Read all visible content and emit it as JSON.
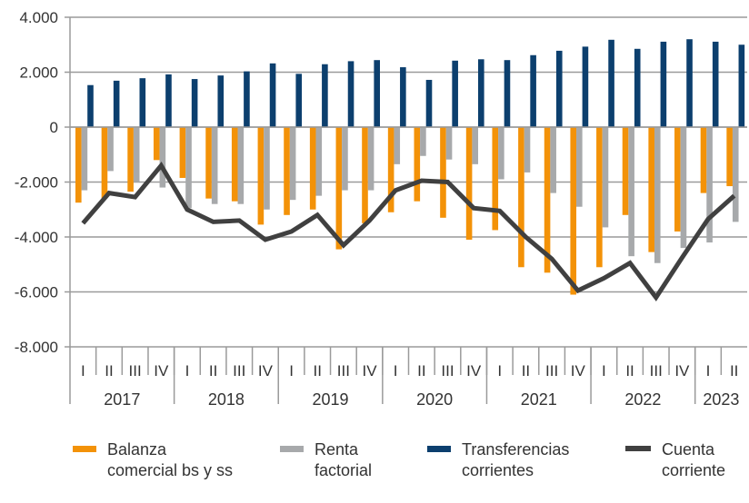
{
  "chart_data": {
    "type": "bar",
    "title": "",
    "xlabel": "",
    "ylabel": "",
    "ylim": [
      -8000,
      4000
    ],
    "yticks": [
      4000,
      2000,
      0,
      -2000,
      -4000,
      -6000,
      -8000
    ],
    "ytick_labels": [
      "4.000",
      "2.000",
      "0",
      "-2.000",
      "-4.000",
      "-6.000",
      "-8.000"
    ],
    "grid": true,
    "legend_placement": "bottom",
    "quarters": [
      "I",
      "II",
      "III",
      "IV",
      "I",
      "II",
      "III",
      "IV",
      "I",
      "II",
      "III",
      "IV",
      "I",
      "II",
      "III",
      "IV",
      "I",
      "II",
      "III",
      "IV",
      "I",
      "II",
      "III",
      "IV",
      "I",
      "II"
    ],
    "years": [
      {
        "label": "2017",
        "quarters": 4
      },
      {
        "label": "2018",
        "quarters": 4
      },
      {
        "label": "2019",
        "quarters": 4
      },
      {
        "label": "2020",
        "quarters": 4
      },
      {
        "label": "2021",
        "quarters": 4
      },
      {
        "label": "2022",
        "quarters": 4
      },
      {
        "label": "2023",
        "quarters": 2
      }
    ],
    "series": [
      {
        "name": "Balanza\ncomercial bs y ss",
        "type": "bar",
        "color": "#F39208",
        "values": [
          -2750,
          -2600,
          -2350,
          -1200,
          -1850,
          -2600,
          -2700,
          -3550,
          -3200,
          -3000,
          -4450,
          -3500,
          -3100,
          -2700,
          -3300,
          -4100,
          -3750,
          -5100,
          -5300,
          -6100,
          -5100,
          -3200,
          -4550,
          -3800,
          -2400,
          -2150
        ]
      },
      {
        "name": "Renta\nfactorial",
        "type": "bar",
        "color": "#A7A9AB",
        "values": [
          -2300,
          -1600,
          -2000,
          -2200,
          -2950,
          -2800,
          -2800,
          -3000,
          -2650,
          -2500,
          -2300,
          -2300,
          -1350,
          -1050,
          -1180,
          -1350,
          -1900,
          -1650,
          -2400,
          -2900,
          -3650,
          -4700,
          -4950,
          -4400,
          -4200,
          -3450
        ]
      },
      {
        "name": "Transferencias\ncorrientes",
        "type": "bar",
        "color": "#0C3F6E",
        "values": [
          1530,
          1690,
          1780,
          1920,
          1750,
          1880,
          2030,
          2320,
          1940,
          2290,
          2400,
          2440,
          2180,
          1720,
          2420,
          2470,
          2440,
          2620,
          2780,
          2930,
          3180,
          2850,
          3110,
          3200,
          3110,
          3000
        ]
      },
      {
        "name": "Cuenta\ncorriente",
        "type": "line",
        "color": "#404040",
        "values": [
          -3500,
          -2400,
          -2550,
          -1400,
          -3000,
          -3450,
          -3400,
          -4100,
          -3800,
          -3200,
          -4300,
          -3400,
          -2300,
          -1950,
          -2000,
          -2950,
          -3050,
          -4000,
          -4800,
          -5950,
          -5500,
          -4950,
          -6200,
          -4750,
          -3350,
          -2500
        ]
      }
    ]
  }
}
